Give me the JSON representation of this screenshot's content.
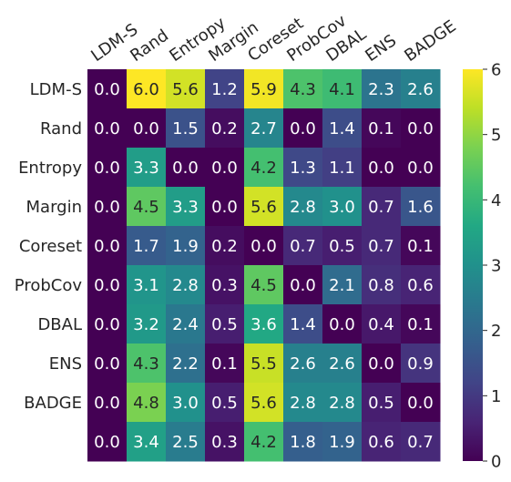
{
  "chart_data": {
    "type": "heatmap",
    "title": "",
    "x_categories": [
      "LDM-S",
      "Rand",
      "Entropy",
      "Margin",
      "Coreset",
      "ProbCov",
      "DBAL",
      "ENS",
      "BADGE"
    ],
    "y_categories": [
      "LDM-S",
      "Rand",
      "Entropy",
      "Margin",
      "Coreset",
      "ProbCov",
      "DBAL",
      "ENS",
      "BADGE",
      ""
    ],
    "values": [
      [
        0.0,
        6.0,
        5.6,
        1.2,
        5.9,
        4.3,
        4.1,
        2.3,
        2.6
      ],
      [
        0.0,
        0.0,
        1.5,
        0.2,
        2.7,
        0.0,
        1.4,
        0.1,
        0.0
      ],
      [
        0.0,
        3.3,
        0.0,
        0.0,
        4.2,
        1.3,
        1.1,
        0.0,
        0.0
      ],
      [
        0.0,
        4.5,
        3.3,
        0.0,
        5.6,
        2.8,
        3.0,
        0.7,
        1.6
      ],
      [
        0.0,
        1.7,
        1.9,
        0.2,
        0.0,
        0.7,
        0.5,
        0.7,
        0.1
      ],
      [
        0.0,
        3.1,
        2.8,
        0.3,
        4.5,
        0.0,
        2.1,
        0.8,
        0.6
      ],
      [
        0.0,
        3.2,
        2.4,
        0.5,
        3.6,
        1.4,
        0.0,
        0.4,
        0.1
      ],
      [
        0.0,
        4.3,
        2.2,
        0.1,
        5.5,
        2.6,
        2.6,
        0.0,
        0.9
      ],
      [
        0.0,
        4.8,
        3.0,
        0.5,
        5.6,
        2.8,
        2.8,
        0.5,
        0.0
      ],
      [
        0.0,
        3.4,
        2.5,
        0.3,
        4.2,
        1.8,
        1.9,
        0.6,
        0.7
      ]
    ],
    "colormap": "viridis",
    "vmin": 0,
    "vmax": 6,
    "colorbar_ticks": [
      0,
      1,
      2,
      3,
      4,
      5,
      6
    ],
    "legend": "colorbar-right",
    "grid": false
  }
}
